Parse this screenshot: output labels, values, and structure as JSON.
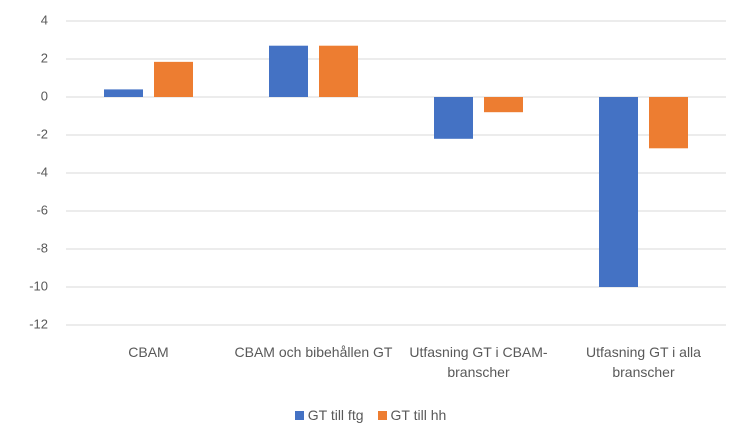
{
  "chart_data": {
    "type": "bar",
    "categories": [
      "CBAM",
      "CBAM och bibehållen GT",
      "Utfasning GT i CBAM-branscher",
      "Utfasning GT i alla branscher"
    ],
    "series": [
      {
        "name": "GT till ftg",
        "color": "#4472c4",
        "values": [
          0.4,
          2.7,
          -2.2,
          -10
        ]
      },
      {
        "name": "GT till hh",
        "color": "#ed7d31",
        "values": [
          1.85,
          2.7,
          -0.8,
          -2.7
        ]
      }
    ],
    "ylim": [
      -12,
      4
    ],
    "yticks": [
      -12,
      -10,
      -8,
      -6,
      -4,
      -2,
      0,
      2,
      4
    ],
    "grid": true,
    "legend": "bottom"
  }
}
